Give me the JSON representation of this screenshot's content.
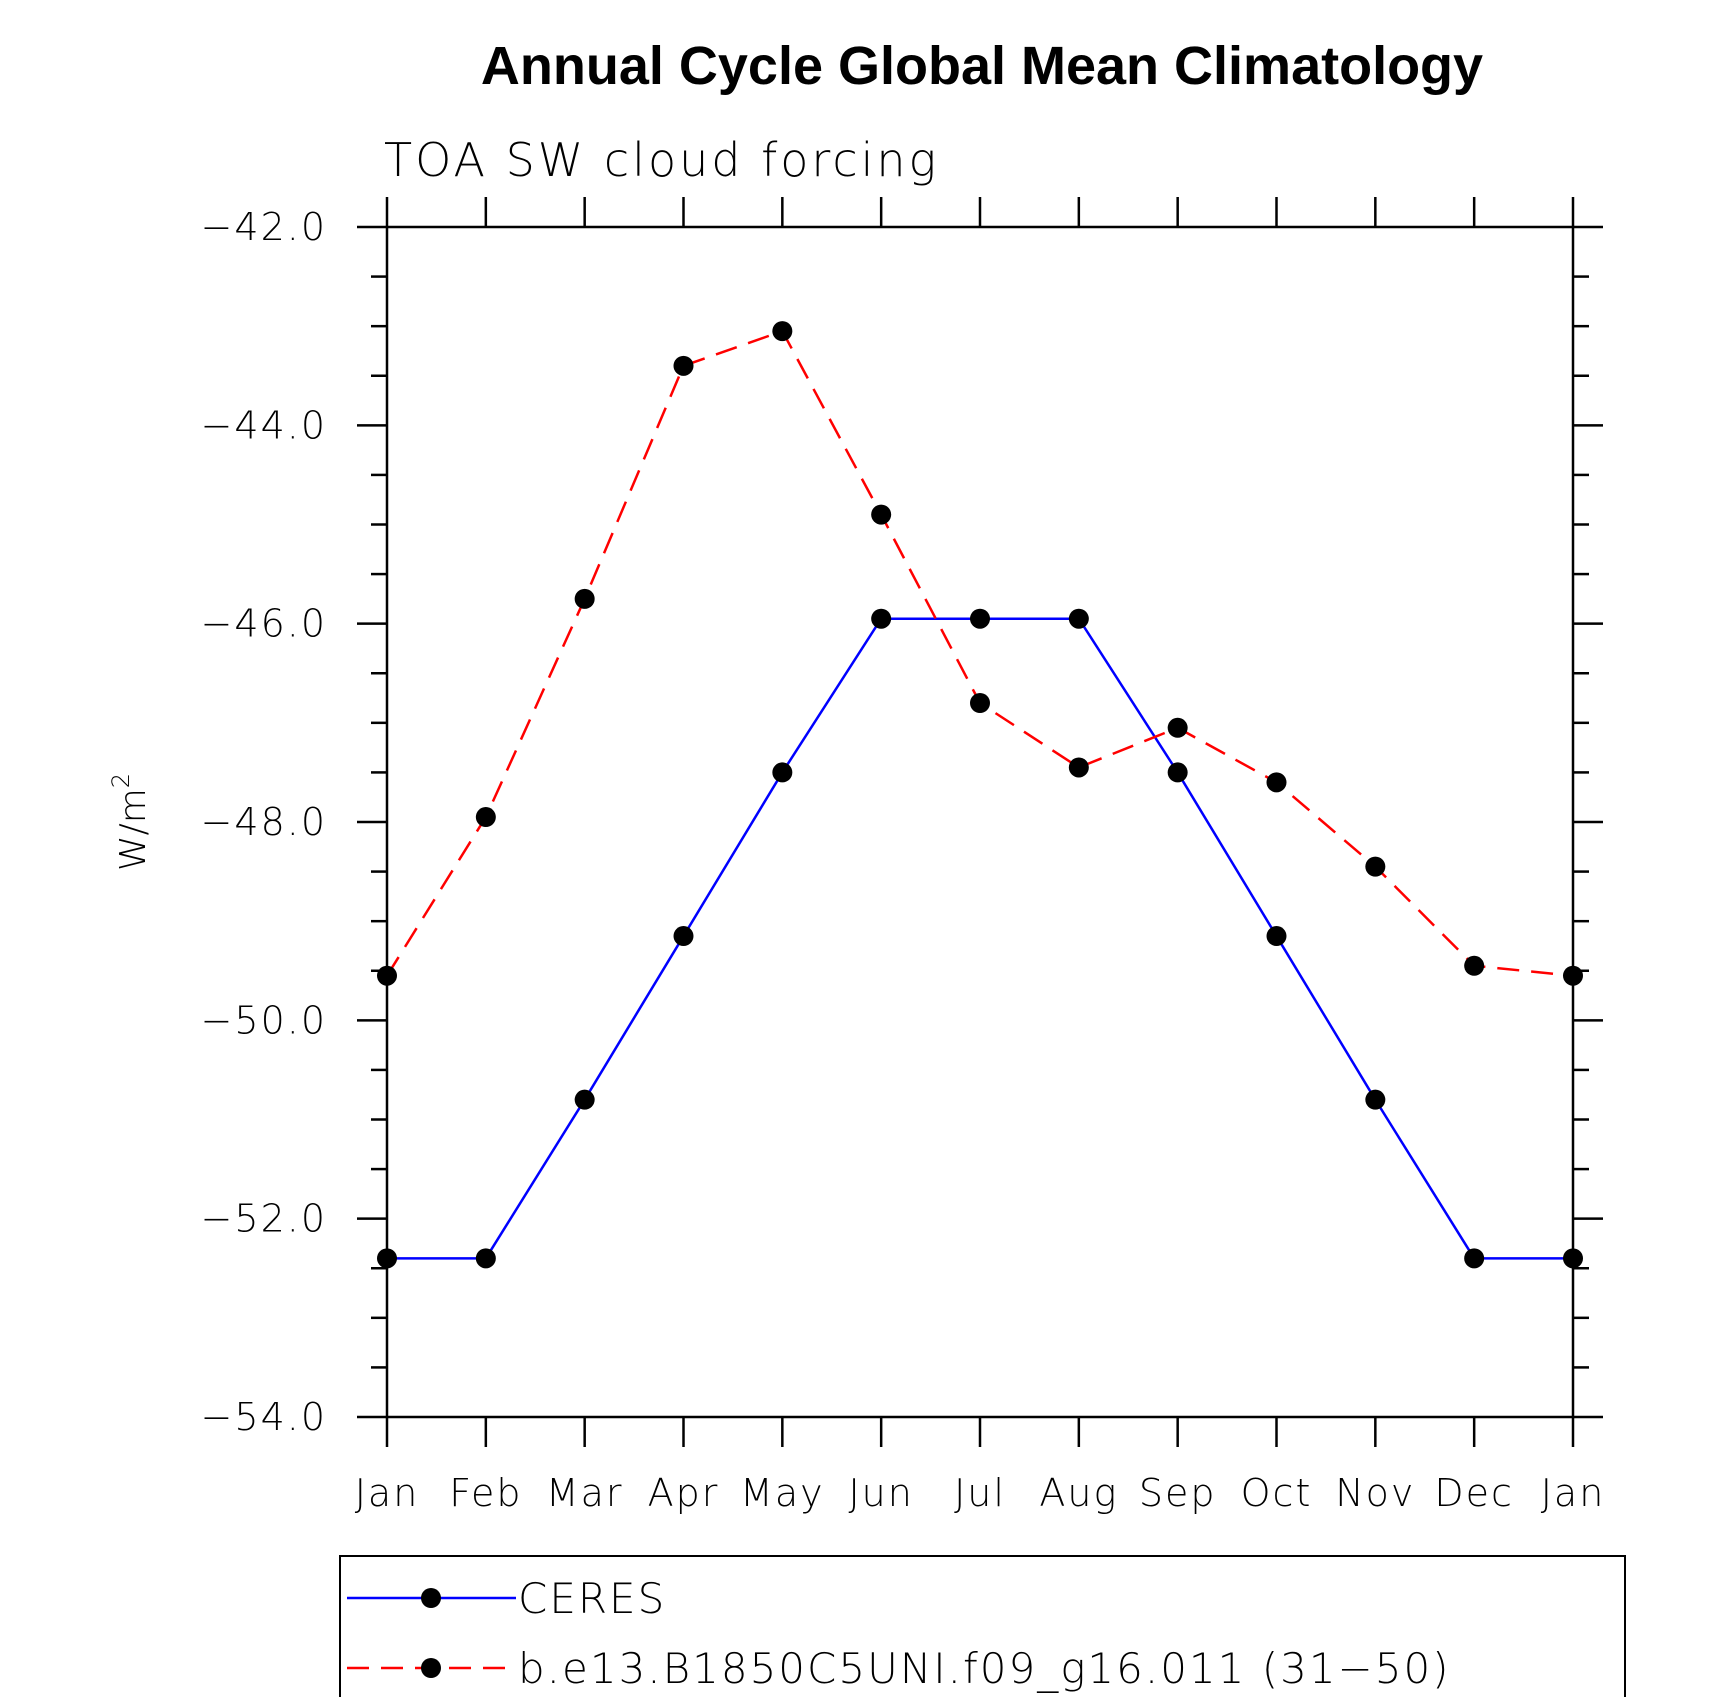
{
  "chart_data": {
    "type": "line",
    "title": "Annual Cycle Global Mean Climatology",
    "subtitle": "TOA SW cloud forcing",
    "ylabel": "W/m",
    "ylabel_superscript": "2",
    "xlabel": "",
    "ylim": [
      -54.0,
      -42.0
    ],
    "y_ticks": [
      -42.0,
      -44.0,
      -46.0,
      -48.0,
      -50.0,
      -52.0,
      -54.0
    ],
    "y_tick_labels": [
      "−42.0",
      "−44.0",
      "−46.0",
      "−48.0",
      "−50.0",
      "−52.0",
      "−54.0"
    ],
    "categories": [
      "Jan",
      "Feb",
      "Mar",
      "Apr",
      "May",
      "Jun",
      "Jul",
      "Aug",
      "Sep",
      "Oct",
      "Nov",
      "Dec",
      "Jan"
    ],
    "series": [
      {
        "name": "CERES",
        "color": "#0000ff",
        "dash": "solid",
        "values": [
          -52.4,
          -52.4,
          -50.8,
          -49.15,
          -47.5,
          -45.95,
          -45.95,
          -45.95,
          -47.5,
          -49.15,
          -50.8,
          -52.4,
          -52.4
        ]
      },
      {
        "name": "b.e13.B1850C5UNI.f09_g16.011 (31−50)",
        "color": "#ff0000",
        "dash": "dashed",
        "values": [
          -49.55,
          -47.95,
          -45.75,
          -43.4,
          -43.05,
          -44.9,
          -46.8,
          -47.45,
          -47.05,
          -47.6,
          -48.45,
          -49.45,
          -49.55
        ]
      }
    ],
    "legend_position": "bottom",
    "marker_color": "#000000",
    "grid": false
  }
}
